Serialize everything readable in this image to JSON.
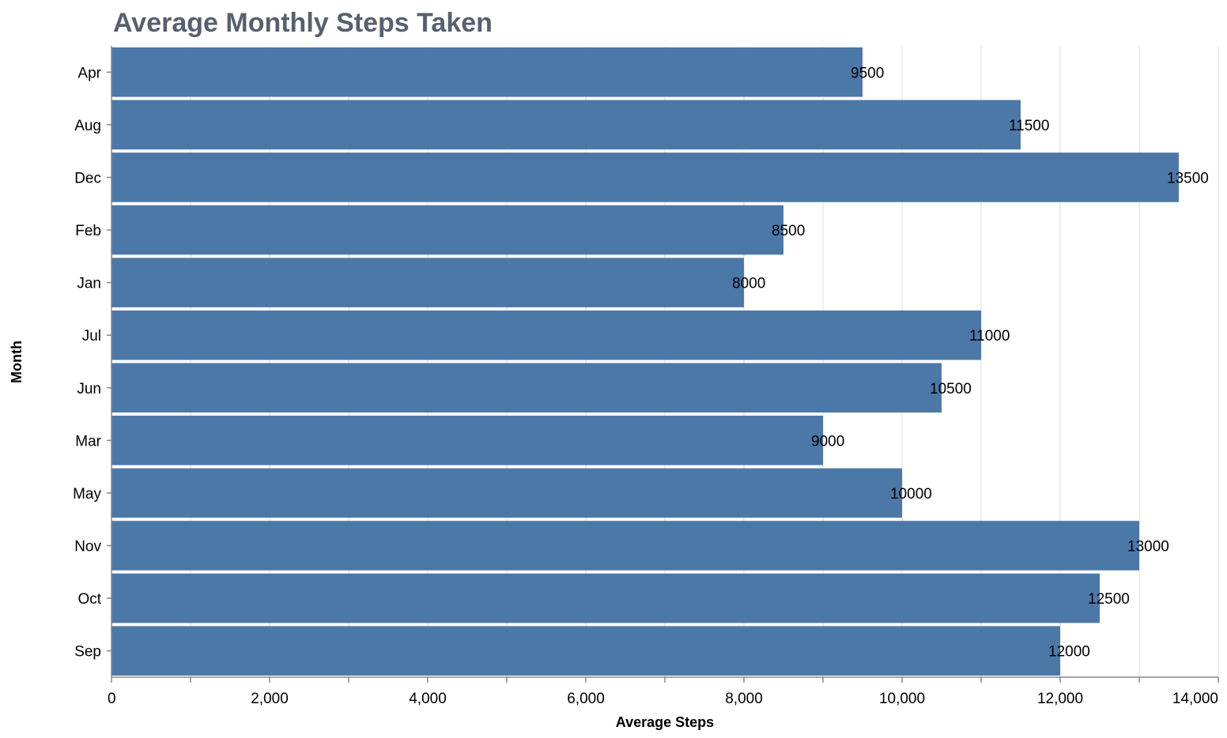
{
  "chart_data": {
    "type": "bar",
    "orientation": "horizontal",
    "title": "Average Monthly Steps Taken",
    "xlabel": "Average Steps",
    "ylabel": "Month",
    "xlim": [
      0,
      14000
    ],
    "x_ticks": [
      0,
      2000,
      4000,
      6000,
      8000,
      10000,
      12000,
      14000
    ],
    "x_tick_labels": [
      "0",
      "2,000",
      "4,000",
      "6,000",
      "8,000",
      "10,000",
      "12,000",
      "14,000"
    ],
    "grid": true,
    "bar_color": "#4c78a8",
    "categories": [
      "Apr",
      "Aug",
      "Dec",
      "Feb",
      "Jan",
      "Jul",
      "Jun",
      "Mar",
      "May",
      "Nov",
      "Oct",
      "Sep"
    ],
    "values": [
      9500,
      11500,
      13500,
      8500,
      8000,
      11000,
      10500,
      9000,
      10000,
      13000,
      12500,
      12000
    ],
    "data_labels": [
      "9500",
      "11500",
      "13500",
      "8500",
      "8000",
      "11000",
      "10500",
      "9000",
      "10000",
      "13000",
      "12500",
      "12000"
    ]
  }
}
